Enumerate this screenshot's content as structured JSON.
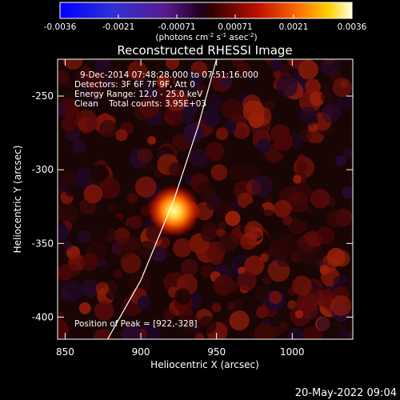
{
  "chart_data": {
    "type": "heatmap",
    "title": "Reconstructed RHESSI Image",
    "xlabel": "Heliocentric X (arcsec)",
    "ylabel": "Heliocentric Y (arcsec)",
    "xlim": [
      845,
      1040
    ],
    "ylim": [
      -415,
      -225
    ],
    "xticks": [
      850,
      900,
      950,
      1000
    ],
    "yticks": [
      -250,
      -300,
      -350,
      -400
    ],
    "colorbar": {
      "min": -0.0036,
      "max": 0.0036,
      "ticks": [
        "-0.0036",
        "-0.0021",
        "-0.00071",
        "0.00071",
        "0.0021",
        "0.0036"
      ],
      "units_text": "(photons cm",
      "units_sup1": "-2",
      "units_mid": " s",
      "units_sup2": "-1",
      "units_end": " asec",
      "units_sup3": "-2",
      "units_close": ")"
    },
    "annotations": {
      "time_range": "9-Dec-2014 07:48:28.000 to 07:51:16.000",
      "detectors": "Detectors: 3F 6F 7F 9F, Att 0",
      "energy": "Energy Range: 12.0 - 25.0 keV",
      "clean": "Clean    Total counts: 3.95E+03",
      "peak": "Position of Peak = [922,-328]"
    },
    "peak": {
      "x": 922,
      "y": -328
    },
    "limb_curve": [
      [
        878,
        -415
      ],
      [
        900,
        -375
      ],
      [
        922,
        -320
      ],
      [
        938,
        -270
      ],
      [
        950,
        -225
      ]
    ],
    "colors": {
      "background": "#000000",
      "text": "#ffffff",
      "plot_bg": "#1a0505"
    }
  },
  "footer": {
    "date": "20-May-2022 09:04"
  }
}
